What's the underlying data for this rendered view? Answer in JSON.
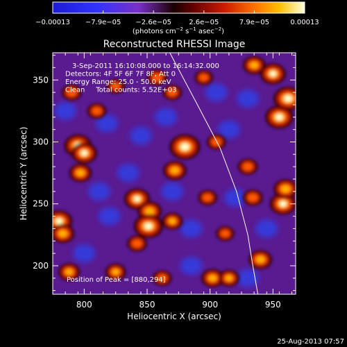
{
  "colorbar": {
    "ticks": [
      "−0.00013",
      "−7.9e−05",
      "−2.6e−05",
      "2.6e−05",
      "7.9e−05",
      "0.00013"
    ],
    "units": "(photons cm",
    "units_exp1": "−2",
    "units_mid": " s",
    "units_exp2": "−1",
    "units_end": " asec",
    "units_exp3": "−2",
    "units_close": ")"
  },
  "chart_data": {
    "type": "heatmap",
    "title": "Reconstructed RHESSI Image",
    "xlabel": "Heliocentric X (arcsec)",
    "ylabel": "Heliocentric Y (arcsec)",
    "xlim": [
      775,
      968
    ],
    "ylim": [
      177,
      372
    ],
    "xticks": [
      800,
      850,
      900,
      950
    ],
    "yticks": [
      200,
      250,
      300,
      350
    ],
    "colorscale": "red-temperature with blue negatives",
    "color_range": [
      -0.00013,
      0.00013
    ],
    "annotations": [
      "3-Sep-2011 16:10:08.000 to 16:14:32.000",
      "Detectors: 4F 5F 6F 7F 8F, Att 0",
      "Energy Range: 25.0 - 50.0 keV",
      "Clean     Total counts: 5.52E+03"
    ],
    "peak_label": "Position of Peak = [880,294]",
    "peak": [
      880,
      294
    ],
    "hot_spots": [
      {
        "x": 880,
        "y": 296,
        "v": 1.0
      },
      {
        "x": 872,
        "y": 277,
        "v": 0.55
      },
      {
        "x": 795,
        "y": 297,
        "v": 0.8
      },
      {
        "x": 800,
        "y": 291,
        "v": 0.7
      },
      {
        "x": 797,
        "y": 275,
        "v": 0.5
      },
      {
        "x": 790,
        "y": 340,
        "v": 0.35
      },
      {
        "x": 810,
        "y": 325,
        "v": 0.3
      },
      {
        "x": 842,
        "y": 254,
        "v": 0.7
      },
      {
        "x": 852,
        "y": 244,
        "v": 0.6
      },
      {
        "x": 851,
        "y": 232,
        "v": 0.9
      },
      {
        "x": 870,
        "y": 236,
        "v": 0.4
      },
      {
        "x": 842,
        "y": 218,
        "v": 0.35
      },
      {
        "x": 780,
        "y": 236,
        "v": 0.75
      },
      {
        "x": 783,
        "y": 226,
        "v": 0.55
      },
      {
        "x": 788,
        "y": 195,
        "v": 0.45
      },
      {
        "x": 825,
        "y": 195,
        "v": 0.4
      },
      {
        "x": 902,
        "y": 190,
        "v": 0.5
      },
      {
        "x": 915,
        "y": 190,
        "v": 0.4
      },
      {
        "x": 862,
        "y": 190,
        "v": 0.3
      },
      {
        "x": 940,
        "y": 205,
        "v": 0.55
      },
      {
        "x": 958,
        "y": 250,
        "v": 0.75
      },
      {
        "x": 960,
        "y": 262,
        "v": 0.6
      },
      {
        "x": 934,
        "y": 255,
        "v": 0.35
      },
      {
        "x": 955,
        "y": 320,
        "v": 0.85
      },
      {
        "x": 962,
        "y": 335,
        "v": 0.9
      },
      {
        "x": 950,
        "y": 355,
        "v": 0.7
      },
      {
        "x": 935,
        "y": 362,
        "v": 0.5
      },
      {
        "x": 930,
        "y": 280,
        "v": 0.35
      },
      {
        "x": 905,
        "y": 300,
        "v": 0.3
      },
      {
        "x": 898,
        "y": 255,
        "v": 0.3
      },
      {
        "x": 912,
        "y": 226,
        "v": 0.25
      },
      {
        "x": 858,
        "y": 352,
        "v": 0.35
      },
      {
        "x": 870,
        "y": 340,
        "v": 0.3
      },
      {
        "x": 825,
        "y": 345,
        "v": 0.25
      },
      {
        "x": 895,
        "y": 352,
        "v": 0.25
      }
    ],
    "cold_spots": [
      {
        "x": 785,
        "y": 325
      },
      {
        "x": 818,
        "y": 315
      },
      {
        "x": 845,
        "y": 305
      },
      {
        "x": 865,
        "y": 320
      },
      {
        "x": 835,
        "y": 275
      },
      {
        "x": 812,
        "y": 260
      },
      {
        "x": 820,
        "y": 240
      },
      {
        "x": 800,
        "y": 210
      },
      {
        "x": 870,
        "y": 260
      },
      {
        "x": 885,
        "y": 230
      },
      {
        "x": 885,
        "y": 200
      },
      {
        "x": 920,
        "y": 255
      },
      {
        "x": 915,
        "y": 310
      },
      {
        "x": 930,
        "y": 335
      },
      {
        "x": 945,
        "y": 230
      },
      {
        "x": 930,
        "y": 190
      },
      {
        "x": 905,
        "y": 340
      }
    ],
    "limb": [
      [
        868,
        372
      ],
      [
        890,
        330
      ],
      [
        908,
        295
      ],
      [
        921,
        260
      ],
      [
        930,
        225
      ],
      [
        934,
        200
      ],
      [
        938,
        177
      ]
    ]
  },
  "timestamp": "25-Aug-2013 07:57"
}
